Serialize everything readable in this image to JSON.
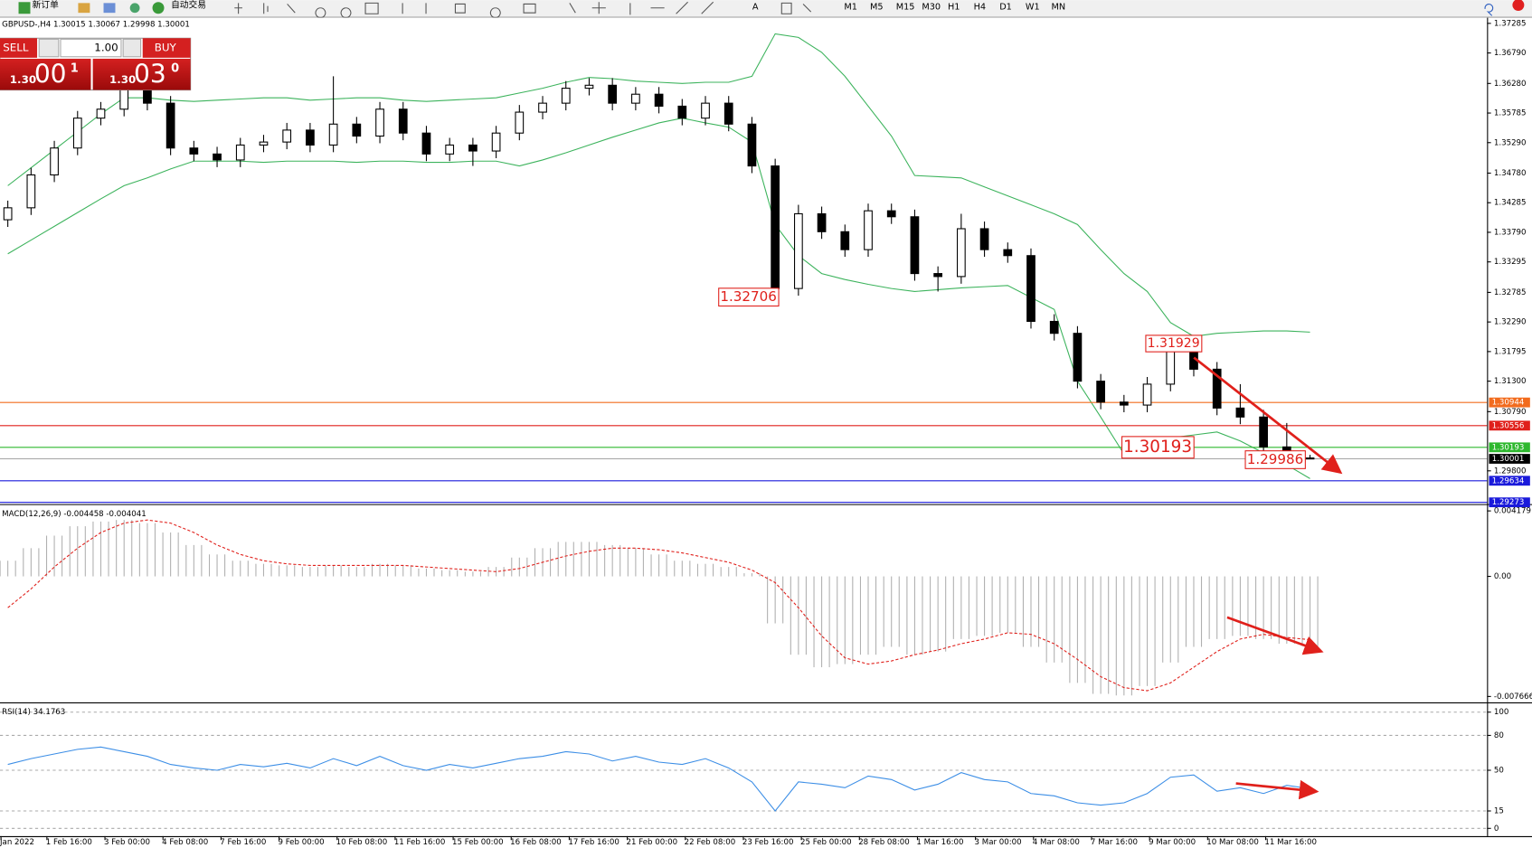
{
  "toolbar": {
    "buttons": [
      "新订单",
      "自动交易"
    ],
    "timeframes": [
      "M1",
      "M5",
      "M15",
      "M30",
      "H1",
      "H4",
      "D1",
      "W1",
      "MN"
    ]
  },
  "trade_panel": {
    "sell": "SELL",
    "buy": "BUY",
    "lot": "1.00",
    "sell_quote": [
      "1.30",
      "00",
      "1"
    ],
    "buy_quote": [
      "1.30",
      "03",
      "0"
    ]
  },
  "time_axis": [
    "Jan 2022",
    "1 Feb 16:00",
    "3 Feb 00:00",
    "4 Feb 08:00",
    "7 Feb 16:00",
    "9 Feb 00:00",
    "10 Feb 08:00",
    "11 Feb 16:00",
    "15 Feb 00:00",
    "16 Feb 08:00",
    "17 Feb 16:00",
    "21 Feb 00:00",
    "22 Feb 08:00",
    "23 Feb 16:00",
    "25 Feb 00:00",
    "28 Feb 08:00",
    "1 Mar 16:00",
    "3 Mar 00:00",
    "4 Mar 08:00",
    "7 Mar 16:00",
    "9 Mar 00:00",
    "10 Mar 08:00",
    "11 Mar 16:00"
  ],
  "chart_data": [
    {
      "type": "candlestick",
      "title": "GBPUSD-,H4  1.30015 1.30067 1.29998 1.30001",
      "ylim": [
        1.2926,
        1.3738
      ],
      "yticks": [
        1.37285,
        {
          "value": 1.3679,
          "label": "1.36790"
        },
        {
          "value": 1.3628,
          "label": "1.36280"
        },
        1.35785,
        {
          "value": 1.3529,
          "label": "1.35290"
        },
        {
          "value": 1.3478,
          "label": "1.34780"
        },
        1.34285,
        {
          "value": 1.3379,
          "label": "1.33790"
        },
        1.33295,
        1.32785,
        {
          "value": 1.3229,
          "label": "1.32290"
        },
        1.31795,
        {
          "value": 1.313,
          "label": "1.31300"
        },
        {
          "value": 1.3079,
          "label": "1.30790"
        },
        {
          "value": 1.298,
          "label": "1.29800"
        }
      ],
      "candles": [
        [
          1.34,
          1.3432,
          1.3388,
          1.342
        ],
        [
          1.342,
          1.3487,
          1.3408,
          1.3475
        ],
        [
          1.3475,
          1.3532,
          1.3463,
          1.352
        ],
        [
          1.352,
          1.3582,
          1.3508,
          1.357
        ],
        [
          1.357,
          1.3597,
          1.3558,
          1.3585
        ],
        [
          1.3585,
          1.3632,
          1.3573,
          1.362
        ],
        [
          1.362,
          1.3632,
          1.3583,
          1.3595
        ],
        [
          1.3595,
          1.3607,
          1.3508,
          1.352
        ],
        [
          1.352,
          1.3532,
          1.3498,
          1.351
        ],
        [
          1.351,
          1.3522,
          1.3488,
          1.35
        ],
        [
          1.35,
          1.3537,
          1.3488,
          1.3525
        ],
        [
          1.3525,
          1.3542,
          1.3513,
          1.353
        ],
        [
          1.353,
          1.3562,
          1.3518,
          1.355
        ],
        [
          1.355,
          1.3562,
          1.3513,
          1.3525
        ],
        [
          1.3525,
          1.364,
          1.3513,
          1.356
        ],
        [
          1.356,
          1.3572,
          1.3528,
          1.354
        ],
        [
          1.354,
          1.3597,
          1.3528,
          1.3585
        ],
        [
          1.3585,
          1.3597,
          1.3533,
          1.3545
        ],
        [
          1.3545,
          1.3557,
          1.3498,
          1.351
        ],
        [
          1.351,
          1.3537,
          1.3498,
          1.3525
        ],
        [
          1.3525,
          1.3537,
          1.349,
          1.3515
        ],
        [
          1.3515,
          1.3557,
          1.3503,
          1.3545
        ],
        [
          1.3545,
          1.3592,
          1.3533,
          1.358
        ],
        [
          1.358,
          1.3607,
          1.3568,
          1.3595
        ],
        [
          1.3595,
          1.3632,
          1.3583,
          1.362
        ],
        [
          1.362,
          1.3637,
          1.3608,
          1.3625
        ],
        [
          1.3625,
          1.3637,
          1.3583,
          1.3595
        ],
        [
          1.3595,
          1.3622,
          1.3583,
          1.361
        ],
        [
          1.361,
          1.3622,
          1.3578,
          1.359
        ],
        [
          1.359,
          1.3602,
          1.3558,
          1.357
        ],
        [
          1.357,
          1.3607,
          1.3558,
          1.3595
        ],
        [
          1.3595,
          1.3607,
          1.3548,
          1.356
        ],
        [
          1.356,
          1.3572,
          1.3478,
          1.349
        ],
        [
          1.349,
          1.3502,
          1.32706,
          1.3285
        ],
        [
          1.3285,
          1.3425,
          1.3273,
          1.341
        ],
        [
          1.341,
          1.3422,
          1.3368,
          1.338
        ],
        [
          1.338,
          1.3392,
          1.3338,
          1.335
        ],
        [
          1.335,
          1.3427,
          1.3338,
          1.3415
        ],
        [
          1.3415,
          1.3427,
          1.3393,
          1.3405
        ],
        [
          1.3405,
          1.3417,
          1.3298,
          1.331
        ],
        [
          1.331,
          1.3322,
          1.328,
          1.3305
        ],
        [
          1.3305,
          1.341,
          1.3293,
          1.3385
        ],
        [
          1.3385,
          1.3397,
          1.3338,
          1.335
        ],
        [
          1.335,
          1.3362,
          1.3328,
          1.334
        ],
        [
          1.334,
          1.3352,
          1.3218,
          1.323
        ],
        [
          1.323,
          1.3242,
          1.3198,
          1.321
        ],
        [
          1.321,
          1.3222,
          1.3118,
          1.313
        ],
        [
          1.313,
          1.3142,
          1.3083,
          1.3095
        ],
        [
          1.3095,
          1.3107,
          1.3078,
          1.309
        ],
        [
          1.309,
          1.3137,
          1.3078,
          1.3125
        ],
        [
          1.3125,
          1.3193,
          1.3113,
          1.318
        ],
        [
          1.318,
          1.3192,
          1.3138,
          1.315
        ],
        [
          1.315,
          1.3162,
          1.3073,
          1.3085
        ],
        [
          1.3085,
          1.3125,
          1.3058,
          1.307
        ],
        [
          1.307,
          1.3082,
          1.3008,
          1.302
        ],
        [
          1.302,
          1.306,
          1.2998,
          1.301
        ],
        [
          1.30015,
          1.30067,
          1.29998,
          1.30001
        ]
      ],
      "series": [
        {
          "color": "#3cb35c",
          "values": [
            1.3457,
            1.3487,
            1.3517,
            1.3547,
            1.3577,
            1.3604,
            1.3604,
            1.36,
            1.3598,
            1.36,
            1.3602,
            1.3604,
            1.3604,
            1.36,
            1.3602,
            1.3604,
            1.3604,
            1.36,
            1.3598,
            1.36,
            1.3602,
            1.3604,
            1.3612,
            1.362,
            1.363,
            1.3638,
            1.3636,
            1.3632,
            1.363,
            1.3628,
            1.363,
            1.363,
            1.364,
            1.3711,
            1.3705,
            1.368,
            1.364,
            1.359,
            1.354,
            1.3474,
            1.3472,
            1.347,
            1.3455,
            1.344,
            1.3425,
            1.341,
            1.3392,
            1.335,
            1.331,
            1.328,
            1.3228,
            1.3205,
            1.321,
            1.3212,
            1.3214,
            1.3214,
            1.3212
          ]
        },
        {
          "color": "#3cb35c",
          "values": [
            1.3343,
            1.3366,
            1.3389,
            1.3412,
            1.3435,
            1.3457,
            1.347,
            1.3485,
            1.3498,
            1.3498,
            1.3498,
            1.3496,
            1.3498,
            1.3498,
            1.3498,
            1.3496,
            1.3498,
            1.3498,
            1.3496,
            1.3496,
            1.3498,
            1.3498,
            1.349,
            1.35,
            1.3512,
            1.3525,
            1.3538,
            1.355,
            1.3562,
            1.357,
            1.3562,
            1.3555,
            1.353,
            1.3392,
            1.334,
            1.331,
            1.33,
            1.3292,
            1.3285,
            1.328,
            1.3283,
            1.3286,
            1.3288,
            1.329,
            1.327,
            1.325,
            1.313,
            1.307,
            1.3008,
            1.302,
            1.3035,
            1.304,
            1.3045,
            1.303,
            1.301,
            1.299,
            1.2967
          ]
        }
      ],
      "levels": [
        {
          "value": 1.30944,
          "color": "#f26b1d"
        },
        {
          "value": 1.30556,
          "color": "#e0201b"
        },
        {
          "value": 1.30193,
          "color": "#2eb82e"
        },
        {
          "value": 1.30001,
          "color": "#000000"
        },
        {
          "value": 1.29634,
          "color": "#1a1adb"
        },
        {
          "value": 1.29273,
          "color": "#1a1adb"
        }
      ],
      "annotations": [
        1.32706,
        1.31929,
        1.30193,
        1.29986
      ]
    },
    {
      "type": "macd",
      "title": "MACD(12,26,9) -0.004458 -0.004041",
      "ylim": [
        -0.00798,
        0.004427
      ],
      "yticks": [
        0.004179,
        {
          "value": 0,
          "label": "0.00"
        },
        -0.007666
      ],
      "series": [
        {
          "color": "#b0b0b0",
          "values": [
            0.001,
            0.0018,
            0.0026,
            0.0032,
            0.0035,
            0.0036,
            0.0034,
            0.0028,
            0.002,
            0.0014,
            0.001,
            0.0008,
            0.0007,
            0.0006,
            0.0007,
            0.0006,
            0.0008,
            0.0007,
            0.0005,
            0.0004,
            0.0003,
            0.0006,
            0.0012,
            0.0018,
            0.0022,
            0.0022,
            0.002,
            0.0018,
            0.0014,
            0.001,
            0.0008,
            0.0006,
            0.0002,
            -0.003,
            -0.005,
            -0.0058,
            -0.0056,
            -0.005,
            -0.0045,
            -0.005,
            -0.0048,
            -0.004,
            -0.0038,
            -0.0036,
            -0.0045,
            -0.0055,
            -0.0068,
            -0.0075,
            -0.0076,
            -0.007,
            -0.0055,
            -0.0045,
            -0.004,
            -0.0038,
            -0.004,
            -0.0043,
            -0.004458
          ]
        },
        {
          "color": "#e0201b",
          "values": [
            -0.002,
            -0.0008,
            0.0006,
            0.0018,
            0.0028,
            0.0034,
            0.0036,
            0.0034,
            0.0028,
            0.002,
            0.0014,
            0.001,
            0.0008,
            0.0007,
            0.0007,
            0.0007,
            0.0007,
            0.0007,
            0.0006,
            0.0005,
            0.0004,
            0.0003,
            0.0005,
            0.0009,
            0.0013,
            0.0016,
            0.0018,
            0.0018,
            0.0017,
            0.0015,
            0.0012,
            0.0009,
            0.0004,
            -0.0004,
            -0.002,
            -0.0038,
            -0.0052,
            -0.0056,
            -0.0054,
            -0.005,
            -0.0047,
            -0.0043,
            -0.004,
            -0.0036,
            -0.0037,
            -0.0043,
            -0.0053,
            -0.0064,
            -0.0071,
            -0.0073,
            -0.0068,
            -0.0058,
            -0.0048,
            -0.004,
            -0.0037,
            -0.0039,
            -0.004041
          ]
        }
      ]
    },
    {
      "type": "line",
      "title": "RSI(14) 34.1763",
      "ylim": [
        -6.7,
        105.9
      ],
      "yticks": [
        100,
        80,
        50,
        15,
        0
      ],
      "series": [
        {
          "color": "#3c8ee6",
          "values": [
            55,
            60,
            64,
            68,
            70,
            66,
            62,
            55,
            52,
            50,
            55,
            53,
            56,
            52,
            60,
            54,
            62,
            54,
            50,
            55,
            52,
            56,
            60,
            62,
            66,
            64,
            58,
            62,
            57,
            55,
            60,
            52,
            40,
            15,
            40,
            38,
            35,
            45,
            42,
            33,
            38,
            48,
            42,
            40,
            30,
            28,
            22,
            20,
            22,
            30,
            44,
            46,
            32,
            35,
            30,
            37,
            34.1763
          ]
        }
      ]
    }
  ]
}
